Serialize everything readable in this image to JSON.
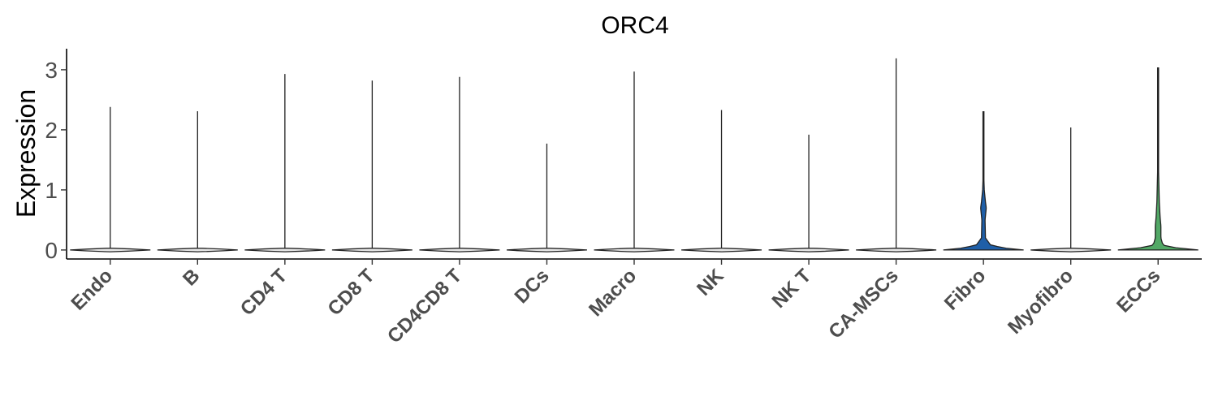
{
  "chart_data": {
    "type": "violin",
    "title": "ORC4",
    "xlabel": "",
    "ylabel": "Expression",
    "ylim": [
      -0.15,
      3.35
    ],
    "yticks": [
      0,
      1,
      2,
      3
    ],
    "grid": false,
    "legend": "none",
    "categories": [
      "Endo",
      "B",
      "CD4 T",
      "CD8 T",
      "CD4CD8 T",
      "DCs",
      "Macro",
      "NK",
      "NK T",
      "CA-MSCs",
      "Fibro",
      "Myofibro",
      "ECCs"
    ],
    "max_values": [
      2.38,
      2.31,
      2.93,
      2.82,
      2.88,
      1.77,
      2.97,
      2.33,
      1.92,
      3.19,
      2.3,
      2.04,
      3.03
    ],
    "violin_colors": [
      "#e8e8e8",
      "#e8e8e8",
      "#e8e8e8",
      "#e8e8e8",
      "#e8e8e8",
      "#e8e8e8",
      "#e8e8e8",
      "#e8e8e8",
      "#e8e8e8",
      "#e8e8e8",
      "#1f5fa8",
      "#e8e8e8",
      "#52a866"
    ],
    "density_profiles": {
      "Fibro": [
        [
          0,
          1.0
        ],
        [
          0.03,
          0.55
        ],
        [
          0.08,
          0.18
        ],
        [
          0.2,
          0.05
        ],
        [
          0.5,
          0.04
        ],
        [
          0.7,
          0.07
        ],
        [
          0.8,
          0.05
        ],
        [
          1.0,
          0.02
        ],
        [
          1.3,
          0.005
        ],
        [
          2.3,
          0.0
        ]
      ],
      "ECCs": [
        [
          0,
          1.0
        ],
        [
          0.03,
          0.5
        ],
        [
          0.08,
          0.12
        ],
        [
          0.2,
          0.07
        ],
        [
          0.4,
          0.07
        ],
        [
          0.55,
          0.05
        ],
        [
          0.8,
          0.03
        ],
        [
          1.3,
          0.012
        ],
        [
          2.0,
          0.004
        ],
        [
          3.03,
          0.0
        ]
      ]
    }
  }
}
